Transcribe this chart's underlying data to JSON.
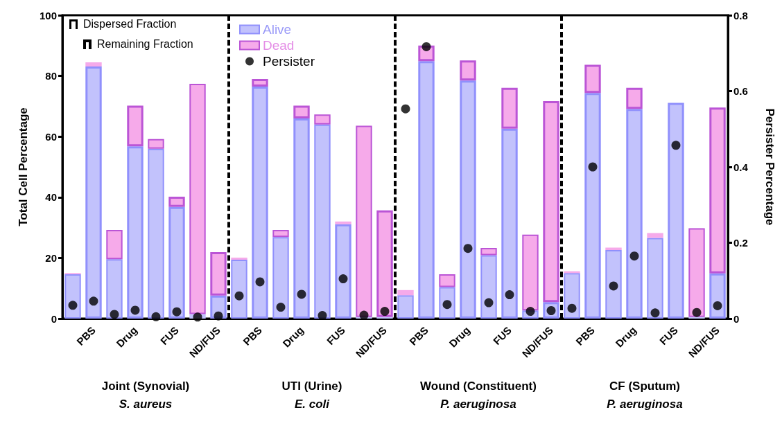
{
  "chart_data": {
    "type": "bar",
    "stacked": true,
    "ylabel": "Total Cell Percentage",
    "y2label": "Persister Percentage",
    "categories": [
      null,
      "PBS",
      null,
      "Drug",
      null,
      "FUS",
      null,
      "ND/FUS",
      null,
      "PBS",
      null,
      "Drug",
      null,
      "FUS",
      null,
      "ND/FUS",
      null,
      "PBS",
      null,
      "Drug",
      null,
      "FUS",
      null,
      "ND/FUS",
      null,
      "PBS",
      null,
      "Drug",
      null,
      "FUS",
      null,
      "ND/FUS"
    ],
    "series": [
      {
        "name": "Alive",
        "color": "#c2c2fc",
        "values": [
          14.6,
          83.1,
          19.6,
          56.8,
          56.0,
          36.8,
          1.5,
          7.6,
          19.4,
          76.5,
          26.9,
          66.0,
          64.0,
          31.1,
          0.5,
          0.5,
          7.7,
          84.9,
          10.4,
          78.5,
          20.9,
          62.6,
          2.7,
          5.4,
          15.0,
          74.4,
          22.6,
          69.1,
          26.6,
          71.1,
          0.5,
          14.9
        ]
      },
      {
        "name": "Dead",
        "color": "#f6aaea",
        "values": [
          0.4,
          1.4,
          9.6,
          13.4,
          3.2,
          3.4,
          75.9,
          14.3,
          0.7,
          2.5,
          2.3,
          4.2,
          3.3,
          0.9,
          63.1,
          35.2,
          1.7,
          5.1,
          4.2,
          6.6,
          2.4,
          13.5,
          25.0,
          66.3,
          0.6,
          9.3,
          0.8,
          7.0,
          1.6,
          0,
          29.3,
          54.7
        ]
      },
      {
        "name": "Persister",
        "type": "scatter",
        "axis": "y2",
        "color": "#000000",
        "values": [
          0.035,
          0.046,
          0.011,
          0.022,
          0.005,
          0.018,
          0.004,
          0.007,
          0.06,
          0.097,
          0.03,
          0.064,
          0.008,
          0.105,
          0.009,
          0.019,
          0.553,
          0.717,
          0.037,
          0.185,
          0.042,
          0.063,
          0.019,
          0.021,
          0.027,
          0.4,
          0.086,
          0.165,
          0.015,
          0.457,
          0.016,
          0.034
        ]
      }
    ],
    "ylim": [
      0,
      100
    ],
    "yticks": [
      0,
      20,
      40,
      60,
      80,
      100
    ],
    "y2lim": [
      0,
      0.8
    ],
    "y2ticks": [
      0.0,
      {
        "value": 0.2,
        "label": "0.2"
      },
      {
        "value": 0.4,
        "label": "0.4"
      },
      {
        "value": 0.6,
        "label": "0.6"
      },
      {
        "value": 0.8,
        "label": "0.8"
      }
    ],
    "marker": "circle",
    "legend": "top left",
    "annotations": [
      "Dispersed Fraction",
      "Remaining Fraction",
      "Joint (Synovial)",
      "S. aureus",
      "UTI (Urine)",
      "E. coli",
      "Wound (Constituent)",
      "P. aeruginosa",
      "CF (Sputum)",
      "P. aeruginosa"
    ]
  }
}
